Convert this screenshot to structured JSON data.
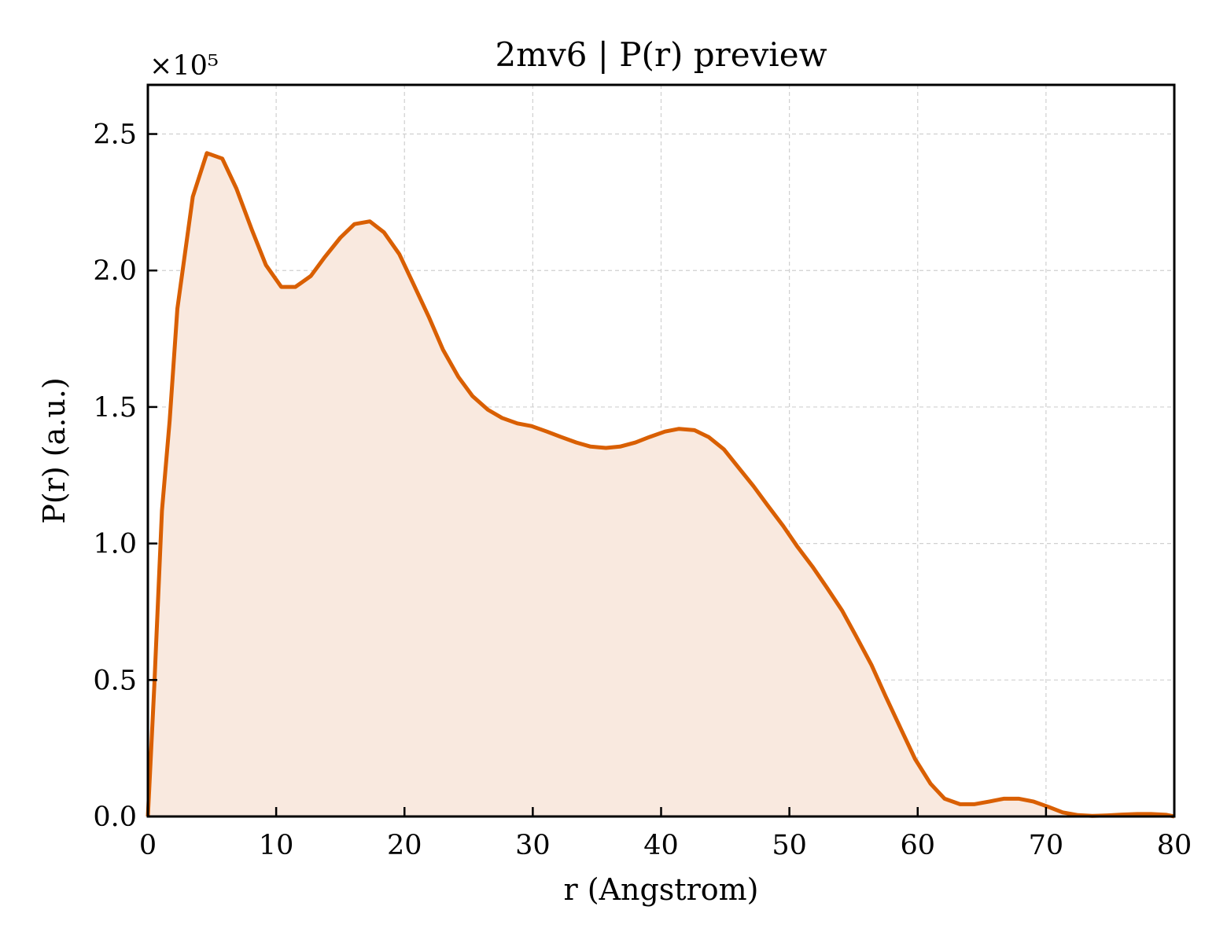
{
  "chart_data": {
    "type": "area",
    "title": "2mv6 | P(r) preview",
    "xlabel": "r (Angstrom)",
    "ylabel": "P(r) (a.u.)",
    "y_multiplier_label": "×10⁵",
    "y_scale_factor": 100000,
    "xlim": [
      0,
      80
    ],
    "ylim": [
      0,
      2.68
    ],
    "x_ticks": [
      0,
      10,
      20,
      30,
      40,
      50,
      60,
      70,
      80
    ],
    "x_tick_labels": [
      "0",
      "10",
      "20",
      "30",
      "40",
      "50",
      "60",
      "70",
      "80"
    ],
    "y_ticks": [
      0,
      0.5,
      1.0,
      1.5,
      2.0,
      2.5
    ],
    "y_tick_labels": [
      "0.0",
      "0.5",
      "1.0",
      "1.5",
      "2.0",
      "2.5"
    ],
    "grid": true,
    "legend": "none",
    "line_color": "#d95f02",
    "fill_color": "#f9e9df",
    "series": [
      {
        "x": [
          0,
          0.5,
          1.1,
          1.7,
          2.3,
          3.5,
          4.6,
          5.8,
          6.9,
          8.1,
          9.2,
          10.4,
          11.5,
          12.7,
          13.8,
          15.0,
          16.1,
          17.3,
          18.4,
          19.6,
          20.7,
          21.9,
          23.0,
          24.2,
          25.3,
          26.5,
          27.6,
          28.8,
          29.9,
          31.1,
          32.2,
          33.4,
          34.5,
          35.7,
          36.8,
          38.0,
          39.1,
          40.3,
          41.4,
          42.6,
          43.7,
          44.9,
          46.0,
          47.2,
          48.3,
          49.5,
          50.6,
          51.8,
          52.9,
          54.1,
          55.2,
          56.4,
          57.5,
          58.7,
          59.8,
          61.0,
          62.1,
          63.3,
          64.4,
          65.6,
          66.7,
          67.9,
          69.0,
          70.2,
          71.3,
          72.5,
          73.6,
          74.8,
          75.9,
          77.1,
          78.2,
          79.4,
          80.0
        ],
        "y": [
          0,
          0.48,
          1.12,
          1.45,
          1.86,
          2.27,
          2.43,
          2.41,
          2.3,
          2.15,
          2.02,
          1.94,
          1.94,
          1.98,
          2.05,
          2.12,
          2.17,
          2.18,
          2.14,
          2.06,
          1.95,
          1.83,
          1.71,
          1.61,
          1.54,
          1.49,
          1.46,
          1.44,
          1.43,
          1.41,
          1.39,
          1.37,
          1.355,
          1.35,
          1.355,
          1.37,
          1.39,
          1.41,
          1.42,
          1.415,
          1.39,
          1.345,
          1.28,
          1.21,
          1.14,
          1.065,
          0.99,
          0.915,
          0.84,
          0.755,
          0.66,
          0.555,
          0.44,
          0.32,
          0.21,
          0.12,
          0.065,
          0.045,
          0.045,
          0.055,
          0.065,
          0.065,
          0.055,
          0.035,
          0.015,
          0.005,
          0.002,
          0.004,
          0.007,
          0.009,
          0.009,
          0.006,
          0.0
        ]
      }
    ]
  }
}
